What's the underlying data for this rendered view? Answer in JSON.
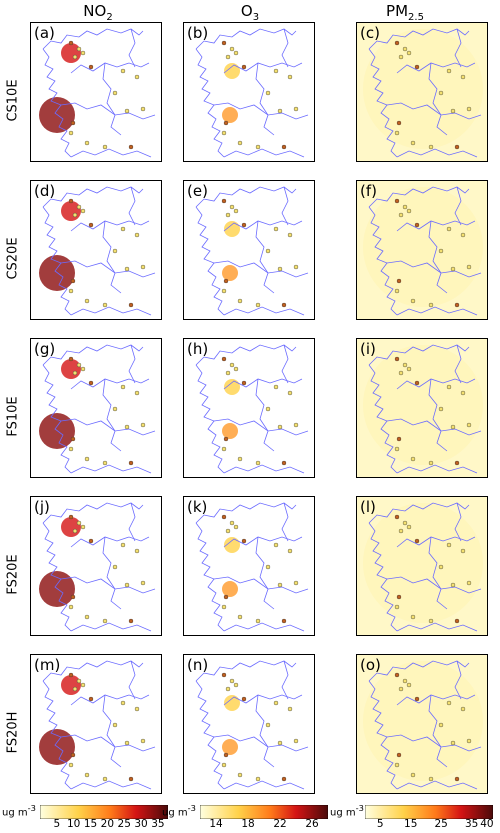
{
  "columns": [
    {
      "title": "NO",
      "sub": "2"
    },
    {
      "title": "O",
      "sub": "3"
    },
    {
      "title": "PM",
      "sub": "2.5"
    }
  ],
  "rows": [
    "CS10E",
    "CS20E",
    "FS10E",
    "FS20E",
    "FS20H"
  ],
  "panel_labels": [
    "(a)",
    "(b)",
    "(c)",
    "(d)",
    "(e)",
    "(f)",
    "(g)",
    "(h)",
    "(i)",
    "(j)",
    "(k)",
    "(l)",
    "(m)",
    "(n)",
    "(o)"
  ],
  "colorbars": [
    {
      "unit": "ug m",
      "sup": "-3",
      "ticks": [
        "5",
        "10",
        "15",
        "20",
        "25",
        "30",
        "35"
      ],
      "range": [
        0,
        38
      ]
    },
    {
      "unit": "ug m",
      "sup": "-3",
      "ticks": [
        "14",
        "18",
        "22",
        "26"
      ],
      "range": [
        12,
        28
      ]
    },
    {
      "unit": "ug m",
      "sup": "-3",
      "ticks": [
        "5",
        "15",
        "25",
        "35",
        "40"
      ],
      "range": [
        0,
        42
      ]
    }
  ],
  "chart_data": {
    "type": "heatmap",
    "title": "",
    "description_type": "map panels",
    "grid": "5 rows x 3 columns",
    "colors": {
      "border": "#6b6bff",
      "low": "#ffffcc",
      "high": "#5c0a0a"
    }
  }
}
